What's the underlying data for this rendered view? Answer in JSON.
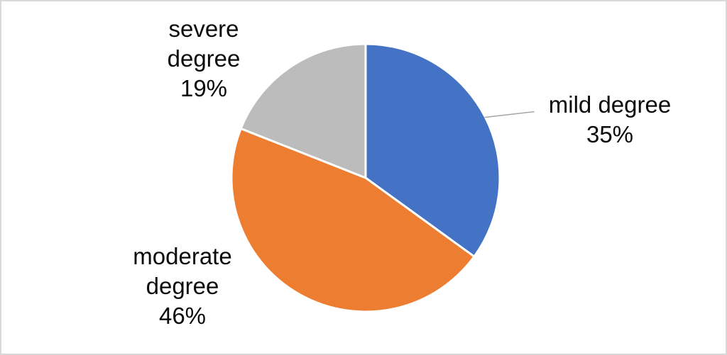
{
  "chart_data": {
    "type": "pie",
    "title": "",
    "legend": "none",
    "background": "#ffffff",
    "start_angle_deg": 0,
    "direction": "clockwise",
    "values_are_percent": true,
    "slices": [
      {
        "name": "mild degree",
        "value": 35,
        "color": "#4472C4",
        "label": "mild degree\n35%"
      },
      {
        "name": "moderate degree",
        "value": 46,
        "color": "#ED7D31",
        "label": "moderate\ndegree\n46%"
      },
      {
        "name": "severe degree",
        "value": 19,
        "color": "#BCBCBC",
        "label": "severe\ndegree\n19%"
      }
    ],
    "slice_separator_color": "#ffffff",
    "leader_line": {
      "from_slice": "mild degree",
      "color": "#A6A6A6"
    }
  }
}
